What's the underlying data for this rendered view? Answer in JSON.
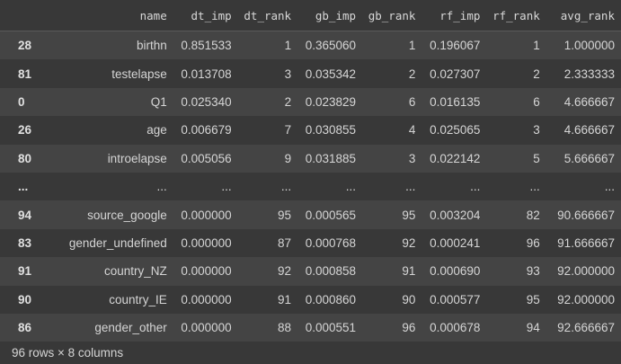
{
  "table": {
    "columns": [
      "name",
      "dt_imp",
      "dt_rank",
      "gb_imp",
      "gb_rank",
      "rf_imp",
      "rf_rank",
      "avg_rank"
    ],
    "rows": [
      {
        "index": "28",
        "cells": [
          "birthn",
          "0.851533",
          "1",
          "0.365060",
          "1",
          "0.196067",
          "1",
          "1.000000"
        ]
      },
      {
        "index": "81",
        "cells": [
          "testelapse",
          "0.013708",
          "3",
          "0.035342",
          "2",
          "0.027307",
          "2",
          "2.333333"
        ]
      },
      {
        "index": "0",
        "cells": [
          "Q1",
          "0.025340",
          "2",
          "0.023829",
          "6",
          "0.016135",
          "6",
          "4.666667"
        ]
      },
      {
        "index": "26",
        "cells": [
          "age",
          "0.006679",
          "7",
          "0.030855",
          "4",
          "0.025065",
          "3",
          "4.666667"
        ]
      },
      {
        "index": "80",
        "cells": [
          "introelapse",
          "0.005056",
          "9",
          "0.031885",
          "3",
          "0.022142",
          "5",
          "5.666667"
        ]
      },
      {
        "index": "...",
        "cells": [
          "...",
          "...",
          "...",
          "...",
          "...",
          "...",
          "...",
          "..."
        ]
      },
      {
        "index": "94",
        "cells": [
          "source_google",
          "0.000000",
          "95",
          "0.000565",
          "95",
          "0.003204",
          "82",
          "90.666667"
        ]
      },
      {
        "index": "83",
        "cells": [
          "gender_undefined",
          "0.000000",
          "87",
          "0.000768",
          "92",
          "0.000241",
          "96",
          "91.666667"
        ]
      },
      {
        "index": "91",
        "cells": [
          "country_NZ",
          "0.000000",
          "92",
          "0.000858",
          "91",
          "0.000690",
          "93",
          "92.000000"
        ]
      },
      {
        "index": "90",
        "cells": [
          "country_IE",
          "0.000000",
          "91",
          "0.000860",
          "90",
          "0.000577",
          "95",
          "92.000000"
        ]
      },
      {
        "index": "86",
        "cells": [
          "gender_other",
          "0.000000",
          "88",
          "0.000551",
          "96",
          "0.000678",
          "94",
          "92.666667"
        ]
      }
    ]
  },
  "footer": {
    "shape_text": "96 rows × 8 columns"
  },
  "colors": {
    "background": "#383838",
    "row_alt": "#444444",
    "text": "#d5d5d5"
  }
}
